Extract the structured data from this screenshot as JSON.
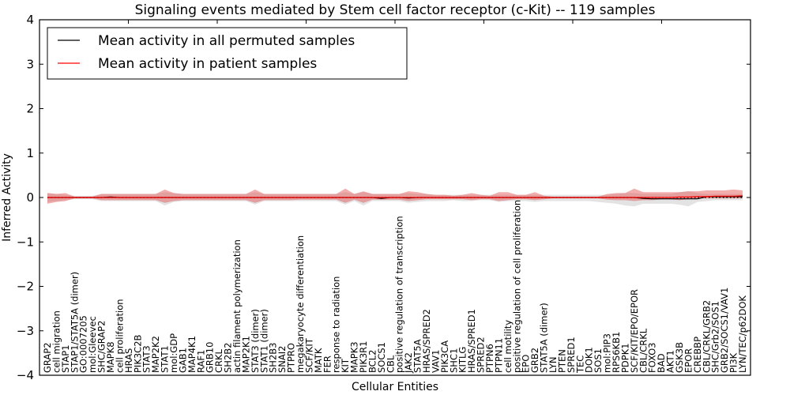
{
  "chart_data": {
    "type": "line",
    "title": "Signaling events mediated by Stem cell factor receptor (c-Kit) -- 119 samples",
    "xlabel": "Cellular Entities",
    "ylabel": "Inferred Activity",
    "ylim": [
      -4,
      4
    ],
    "yticks": [
      "4",
      "3",
      "2",
      "1",
      "0",
      "−1",
      "−2",
      "−3",
      "−4"
    ],
    "ytick_values": [
      4,
      3,
      2,
      1,
      0,
      -1,
      -2,
      -3,
      -4
    ],
    "grid": false,
    "legend_position": "top-left",
    "legend": [
      {
        "label": "Mean activity in all permuted samples",
        "color": "#000000"
      },
      {
        "label": "Mean activity in patient samples",
        "color": "#ff0000"
      }
    ],
    "categories": [
      "GRAP2",
      "cell migration",
      "STAP1",
      "STAP1/STAT5A (dimer)",
      "GO:0007205",
      "mol:Gleevec",
      "SHC/GRAP2",
      "MAPK8",
      "cell proliferation",
      "HRAS",
      "PIK3C2B",
      "STAT3",
      "MAP2K2",
      "STAT1",
      "mol:GDP",
      "GAB1",
      "MAP4K1",
      "RAF1",
      "GRB10",
      "CRKL",
      "SH2B2",
      "actin filament polymerization",
      "MAP2K1",
      "STAT3 (dimer)",
      "STAT1 (dimer)",
      "SH2B3",
      "SNAI2",
      "PTPRO",
      "megakaryocyte differentiation",
      "SCF/KIT",
      "MATK",
      "FER",
      "response to radiation",
      "KIT",
      "MAPK3",
      "PIK3R1",
      "BCL2",
      "SOCS1",
      "CBL",
      "positive regulation of transcription",
      "JAK2",
      "STAT5A",
      "HRAS/SPRED2",
      "VAV1",
      "PIK3CA",
      "SHC1",
      "KITLG",
      "HRAS/SPRED1",
      "SPRED2",
      "PTPN6",
      "PTPN11",
      "cell motility",
      "positive regulation of cell proliferation",
      "EPO",
      "GRB2",
      "STAT5A (dimer)",
      "LYN",
      "PTEN",
      "SPRED1",
      "TEC",
      "DOK1",
      "SOS1",
      "mol:PIP3",
      "RPS6KB1",
      "PDPK1",
      "SCF/KIT/EPO/EPOR",
      "CBL/CRKL",
      "FOXO3",
      "BAD",
      "AKT1",
      "GSK3B",
      "EPOR",
      "CREBBP",
      "CBL/CRKL/GRB2",
      "SHC/Grb2/SOS1",
      "GRB2/SOCS1/VAV1",
      "PI3K",
      "LYN/TEC/p62DOK"
    ],
    "series": [
      {
        "name": "Mean activity in all permuted samples",
        "color": "#000000",
        "values": [
          0,
          0,
          0,
          0,
          0,
          0,
          0,
          0.01,
          0,
          0,
          0,
          0,
          0,
          0,
          0,
          0,
          0,
          0,
          0,
          0,
          0,
          0,
          0,
          0,
          0,
          0,
          0,
          0,
          0,
          0,
          0,
          0,
          0,
          0,
          0,
          0,
          0,
          -0.02,
          0,
          0,
          -0.01,
          0,
          0,
          0,
          0,
          0,
          0,
          0,
          0,
          0,
          0,
          0,
          0,
          0,
          0,
          0,
          0,
          0,
          0,
          0,
          0,
          0,
          0,
          0,
          0,
          0,
          -0.02,
          -0.03,
          -0.03,
          -0.03,
          -0.03,
          -0.03,
          -0.03,
          0.02,
          0.02,
          0.02,
          0.02,
          0.02
        ],
        "band_lower": [
          -0.1,
          -0.08,
          -0.06,
          -0.04,
          -0.04,
          -0.04,
          -0.08,
          -0.08,
          -0.08,
          -0.08,
          -0.08,
          -0.08,
          -0.08,
          -0.18,
          -0.1,
          -0.08,
          -0.08,
          -0.08,
          -0.08,
          -0.08,
          -0.08,
          -0.08,
          -0.08,
          -0.16,
          -0.08,
          -0.08,
          -0.08,
          -0.08,
          -0.08,
          -0.08,
          -0.08,
          -0.08,
          -0.08,
          -0.16,
          -0.08,
          -0.18,
          -0.08,
          -0.08,
          -0.08,
          -0.08,
          -0.12,
          -0.1,
          -0.08,
          -0.08,
          -0.08,
          -0.06,
          -0.08,
          -0.08,
          -0.06,
          -0.06,
          -0.1,
          -0.08,
          -0.08,
          -0.08,
          -0.1,
          -0.08,
          -0.08,
          -0.08,
          -0.08,
          -0.08,
          -0.08,
          -0.1,
          -0.12,
          -0.14,
          -0.18,
          -0.2,
          -0.14,
          -0.14,
          -0.14,
          -0.14,
          -0.16,
          -0.2,
          -0.1,
          -0.08,
          -0.06,
          -0.06,
          -0.06,
          -0.06
        ],
        "band_upper": [
          0.1,
          0.08,
          0.06,
          0.04,
          0.04,
          0.04,
          0.08,
          0.08,
          0.08,
          0.08,
          0.08,
          0.08,
          0.08,
          0.12,
          0.1,
          0.08,
          0.08,
          0.08,
          0.08,
          0.08,
          0.08,
          0.08,
          0.08,
          0.12,
          0.08,
          0.08,
          0.08,
          0.08,
          0.08,
          0.08,
          0.08,
          0.08,
          0.08,
          0.12,
          0.08,
          0.12,
          0.08,
          0.08,
          0.08,
          0.08,
          0.1,
          0.08,
          0.08,
          0.06,
          0.06,
          0.06,
          0.06,
          0.06,
          0.06,
          0.06,
          0.06,
          0.06,
          0.06,
          0.06,
          0.06,
          0.06,
          0.06,
          0.06,
          0.06,
          0.06,
          0.06,
          0.06,
          0.06,
          0.08,
          0.1,
          0.1,
          0.08,
          0.08,
          0.08,
          0.08,
          0.12,
          0.14,
          0.1,
          0.08,
          0.08,
          0.08,
          0.08,
          0.08
        ]
      },
      {
        "name": "Mean activity in patient samples",
        "color": "#ff0000",
        "values": [
          0,
          0,
          0,
          0,
          0,
          0,
          0,
          0,
          0,
          0,
          0,
          0,
          0,
          0,
          0,
          0,
          0,
          0,
          0,
          0,
          0,
          0,
          0,
          0,
          0,
          0,
          0,
          0,
          0,
          0,
          0,
          0,
          0,
          0,
          0,
          0,
          0,
          0,
          0,
          0,
          0,
          0,
          0,
          0,
          0,
          0,
          0,
          0,
          0,
          0,
          0,
          0,
          0,
          0,
          0,
          0,
          0,
          0,
          0,
          0,
          0,
          0,
          0,
          0,
          0,
          0,
          0,
          0,
          0,
          0,
          0.01,
          0.01,
          0.02,
          0.02,
          0.03,
          0.03,
          0.03,
          0.04
        ],
        "band_lower": [
          -0.14,
          -0.1,
          -0.08,
          -0.02,
          -0.02,
          -0.02,
          -0.06,
          -0.06,
          -0.06,
          -0.06,
          -0.06,
          -0.06,
          -0.06,
          -0.12,
          -0.08,
          -0.06,
          -0.06,
          -0.06,
          -0.06,
          -0.06,
          -0.06,
          -0.06,
          -0.06,
          -0.12,
          -0.06,
          -0.06,
          -0.06,
          -0.06,
          -0.05,
          -0.05,
          -0.05,
          -0.05,
          -0.05,
          -0.12,
          -0.05,
          -0.12,
          -0.05,
          -0.05,
          -0.05,
          -0.05,
          -0.08,
          -0.06,
          -0.04,
          -0.04,
          -0.04,
          -0.04,
          -0.04,
          -0.06,
          -0.04,
          -0.04,
          -0.08,
          -0.06,
          -0.04,
          -0.04,
          -0.06,
          -0.04,
          -0.02,
          -0.02,
          -0.02,
          -0.02,
          -0.02,
          -0.02,
          -0.05,
          -0.06,
          -0.06,
          -0.08,
          -0.06,
          -0.06,
          -0.04,
          -0.04,
          -0.06,
          -0.04,
          -0.02,
          -0.02,
          -0.02,
          -0.02,
          -0.02,
          -0.02
        ],
        "band_upper": [
          0.1,
          0.08,
          0.1,
          0.02,
          0.02,
          0.02,
          0.08,
          0.08,
          0.08,
          0.08,
          0.08,
          0.08,
          0.08,
          0.18,
          0.1,
          0.08,
          0.08,
          0.08,
          0.08,
          0.08,
          0.08,
          0.08,
          0.08,
          0.18,
          0.08,
          0.08,
          0.08,
          0.08,
          0.08,
          0.08,
          0.08,
          0.08,
          0.08,
          0.2,
          0.08,
          0.14,
          0.08,
          0.08,
          0.08,
          0.08,
          0.14,
          0.12,
          0.08,
          0.06,
          0.06,
          0.04,
          0.06,
          0.1,
          0.06,
          0.04,
          0.12,
          0.12,
          0.06,
          0.06,
          0.12,
          0.04,
          0.02,
          0.02,
          0.02,
          0.02,
          0.02,
          0.02,
          0.08,
          0.1,
          0.1,
          0.2,
          0.12,
          0.12,
          0.12,
          0.12,
          0.12,
          0.14,
          0.14,
          0.16,
          0.16,
          0.16,
          0.18,
          0.16
        ]
      }
    ]
  }
}
